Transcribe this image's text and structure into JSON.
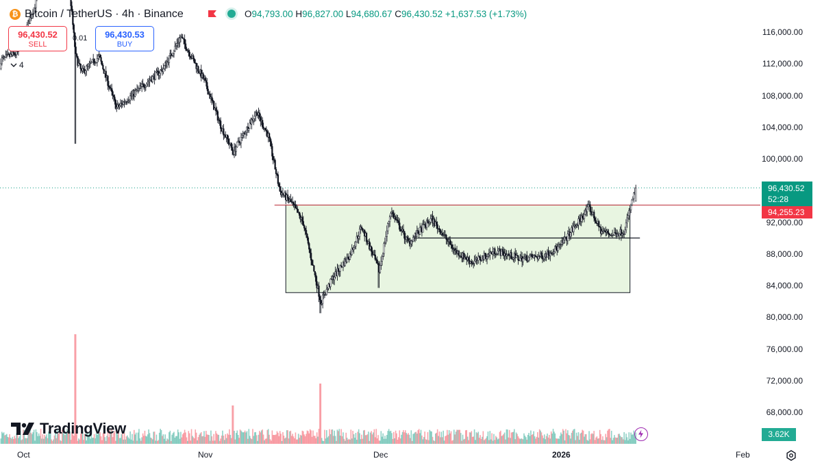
{
  "header": {
    "symbol_icon": "bitcoin-icon",
    "title": "Bitcoin / TetherUS · 4h · Binance",
    "ohlc": [
      {
        "key": "O",
        "value": "94,793.00"
      },
      {
        "key": "H",
        "value": "96,827.00"
      },
      {
        "key": "L",
        "value": "94,680.67"
      },
      {
        "key": "C",
        "value": "96,430.52"
      }
    ],
    "change": "+1,637.53 (+1.73%)"
  },
  "trade": {
    "sell_price": "96,430.52",
    "sell_label": "SELL",
    "buy_price": "96,430.53",
    "buy_label": "BUY",
    "spread": "0.01"
  },
  "indicators_collapsed_count": "4",
  "y_axis": {
    "ticks": [
      "116,000.00",
      "112,000.00",
      "108,000.00",
      "104,000.00",
      "100,000.00",
      "92,000.00",
      "88,000.00",
      "84,000.00",
      "80,000.00",
      "76,000.00",
      "72,000.00",
      "68,000.00"
    ]
  },
  "x_axis": {
    "ticks": [
      {
        "label": "Oct",
        "bold": false
      },
      {
        "label": "Nov",
        "bold": false
      },
      {
        "label": "Dec",
        "bold": false
      },
      {
        "label": "2026",
        "bold": true
      },
      {
        "label": "Feb",
        "bold": false
      }
    ]
  },
  "price_labels": {
    "last_price": "96,430.52",
    "countdown": "52:28",
    "level": "94,255.23",
    "volume": "3.62K"
  },
  "logo_text": "TradingView",
  "colors": {
    "up": "#089981",
    "down": "#f23645",
    "candle": "#131722",
    "range_fill": "#e8f5e1",
    "level_line": "#c2404a"
  },
  "chart_data": {
    "type": "candlestick",
    "title": "Bitcoin / TetherUS · 4h · Binance",
    "interval": "4h",
    "ylim": [
      66000,
      119000
    ],
    "x_range": [
      "2025-09-24",
      "2026-02-16"
    ],
    "close_path": [
      {
        "x": "2025-09-24",
        "y": 111500
      },
      {
        "x": "2025-09-30",
        "y": 113500
      },
      {
        "x": "2025-10-04",
        "y": 121500
      },
      {
        "x": "2025-10-09",
        "y": 121000
      },
      {
        "x": "2025-10-10",
        "y": 113000
      },
      {
        "x": "2025-10-11",
        "y": 111000
      },
      {
        "x": "2025-10-14",
        "y": 113000
      },
      {
        "x": "2025-10-17",
        "y": 106500
      },
      {
        "x": "2025-10-21",
        "y": 109000
      },
      {
        "x": "2025-10-25",
        "y": 111500
      },
      {
        "x": "2025-10-28",
        "y": 115500
      },
      {
        "x": "2025-11-01",
        "y": 110000
      },
      {
        "x": "2025-11-04",
        "y": 104000
      },
      {
        "x": "2025-11-06",
        "y": 101000
      },
      {
        "x": "2025-11-10",
        "y": 106000
      },
      {
        "x": "2025-11-12",
        "y": 103000
      },
      {
        "x": "2025-11-14",
        "y": 96000
      },
      {
        "x": "2025-11-16",
        "y": 94500
      },
      {
        "x": "2025-11-18",
        "y": 92000
      },
      {
        "x": "2025-11-21",
        "y": 82000
      },
      {
        "x": "2025-11-23",
        "y": 85000
      },
      {
        "x": "2025-11-26",
        "y": 88000
      },
      {
        "x": "2025-11-28",
        "y": 91500
      },
      {
        "x": "2025-12-01",
        "y": 86000
      },
      {
        "x": "2025-12-03",
        "y": 93500
      },
      {
        "x": "2025-12-06",
        "y": 89500
      },
      {
        "x": "2025-12-10",
        "y": 92500
      },
      {
        "x": "2025-12-14",
        "y": 88500
      },
      {
        "x": "2025-12-17",
        "y": 87000
      },
      {
        "x": "2025-12-21",
        "y": 88500
      },
      {
        "x": "2025-12-25",
        "y": 87500
      },
      {
        "x": "2025-12-29",
        "y": 87800
      },
      {
        "x": "2026-01-01",
        "y": 89000
      },
      {
        "x": "2026-01-04",
        "y": 92000
      },
      {
        "x": "2026-01-06",
        "y": 94000
      },
      {
        "x": "2026-01-08",
        "y": 91000
      },
      {
        "x": "2026-01-10",
        "y": 90500
      },
      {
        "x": "2026-01-12",
        "y": 91000
      },
      {
        "x": "2026-01-14",
        "y": 96430.52
      }
    ],
    "last_close": 96430.52,
    "annotations": {
      "range_box": {
        "start": "2025-11-15",
        "end": "2026-01-13",
        "bottom": 83200,
        "top": 94255.23
      },
      "resistance_line": {
        "start": "2025-11-14",
        "end": "2026-02-16",
        "price": 94255.23
      },
      "mid_line": {
        "start": "2025-12-07",
        "end": "2026-01-14",
        "price": 90100
      },
      "last_price_line": 96430.52
    },
    "volume": {
      "current": "3.62K",
      "spikes": [
        {
          "x": "2025-10-10",
          "rel": 1.0
        },
        {
          "x": "2025-11-21",
          "rel": 0.55
        },
        {
          "x": "2025-11-06",
          "rel": 0.35
        }
      ]
    }
  }
}
